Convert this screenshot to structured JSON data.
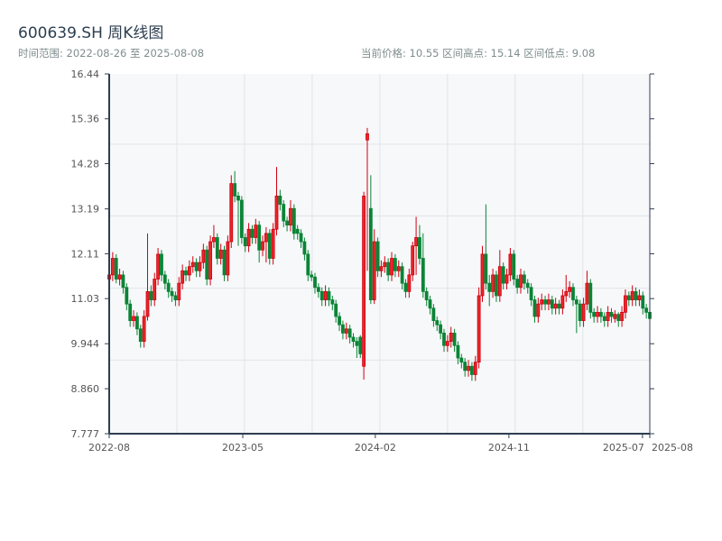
{
  "header": {
    "title": "600639.SH 周K线图",
    "range_label": "时间范围: 2022-08-26 至 2025-08-08",
    "stats_label": "当前价格: 10.55  区间高点: 15.14  区间低点: 9.08"
  },
  "colors": {
    "up": "#d0000f",
    "up_fill": "#e8262a",
    "down": "#0a8436",
    "axis": "#2c3e50",
    "grid": "#e1e4e8",
    "plot_bg": "#f7f8fa"
  },
  "chart_data": {
    "type": "candlestick",
    "title": "600639.SH 周K线图",
    "ylim": [
      7.777,
      16.44
    ],
    "y_ticks": [
      "16.44",
      "15.36",
      "14.28",
      "13.19",
      "12.11",
      "11.03",
      "9.944",
      "8.860",
      "7.777"
    ],
    "y_grid_values": [
      14.75,
      13.02,
      11.28,
      9.55
    ],
    "x_grid_indices": [
      19.4,
      38.8,
      58.2,
      77.6,
      97.0,
      116.4,
      135.8
    ],
    "x_ticks": [
      {
        "index": 0,
        "label": "2022-08"
      },
      {
        "index": 38.3,
        "label": "2023-05"
      },
      {
        "index": 76.3,
        "label": "2024-02"
      },
      {
        "index": 114.6,
        "label": "2024-11"
      },
      {
        "index": 152.9,
        "label": "2025-07"
      },
      {
        "index": 155,
        "label": "2025-08"
      }
    ],
    "candle_format": [
      "open",
      "high",
      "low",
      "close"
    ],
    "candles": [
      [
        11.5,
        11.75,
        11.35,
        11.6
      ],
      [
        11.6,
        12.15,
        11.45,
        12.0
      ],
      [
        12.0,
        12.1,
        11.4,
        11.5
      ],
      [
        11.5,
        11.75,
        11.35,
        11.6
      ],
      [
        11.6,
        11.7,
        11.15,
        11.3
      ],
      [
        11.3,
        11.4,
        10.75,
        10.9
      ],
      [
        10.9,
        11.0,
        10.35,
        10.5
      ],
      [
        10.5,
        10.75,
        10.35,
        10.6
      ],
      [
        10.6,
        10.7,
        10.15,
        10.3
      ],
      [
        10.3,
        10.4,
        9.85,
        10.0
      ],
      [
        10.0,
        10.75,
        9.85,
        10.6
      ],
      [
        10.6,
        12.6,
        10.5,
        11.2
      ],
      [
        11.2,
        11.35,
        10.85,
        11.0
      ],
      [
        11.0,
        11.65,
        10.85,
        11.5
      ],
      [
        11.5,
        12.25,
        11.35,
        12.1
      ],
      [
        12.1,
        12.2,
        11.45,
        11.6
      ],
      [
        11.6,
        11.7,
        11.25,
        11.4
      ],
      [
        11.4,
        11.5,
        11.05,
        11.2
      ],
      [
        11.2,
        11.3,
        10.95,
        11.1
      ],
      [
        11.1,
        11.2,
        10.85,
        11.0
      ],
      [
        11.0,
        11.55,
        10.85,
        11.4
      ],
      [
        11.4,
        11.85,
        11.25,
        11.7
      ],
      [
        11.7,
        11.8,
        11.45,
        11.6
      ],
      [
        11.6,
        11.95,
        11.45,
        11.8
      ],
      [
        11.8,
        12.05,
        11.65,
        11.9
      ],
      [
        11.9,
        12.0,
        11.55,
        11.7
      ],
      [
        11.7,
        12.05,
        11.55,
        11.9
      ],
      [
        11.9,
        12.35,
        11.75,
        12.2
      ],
      [
        12.2,
        12.3,
        11.35,
        11.5
      ],
      [
        11.5,
        12.55,
        11.35,
        12.4
      ],
      [
        12.4,
        12.8,
        12.25,
        12.5
      ],
      [
        12.5,
        12.6,
        11.85,
        12.0
      ],
      [
        12.0,
        12.35,
        11.85,
        12.2
      ],
      [
        12.2,
        12.3,
        11.45,
        11.6
      ],
      [
        11.6,
        12.55,
        11.45,
        12.4
      ],
      [
        12.4,
        14.0,
        12.25,
        13.8
      ],
      [
        13.8,
        14.1,
        13.35,
        13.5
      ],
      [
        13.5,
        13.6,
        12.3,
        13.4
      ],
      [
        13.4,
        13.5,
        12.35,
        12.5
      ],
      [
        12.5,
        12.6,
        12.15,
        12.3
      ],
      [
        12.3,
        12.85,
        12.15,
        12.7
      ],
      [
        12.7,
        12.8,
        12.35,
        12.5
      ],
      [
        12.5,
        12.95,
        12.35,
        12.8
      ],
      [
        12.8,
        12.9,
        11.9,
        12.2
      ],
      [
        12.2,
        12.55,
        12.05,
        12.4
      ],
      [
        12.4,
        12.75,
        11.9,
        12.6
      ],
      [
        12.6,
        12.7,
        11.85,
        12.0
      ],
      [
        12.0,
        12.85,
        11.85,
        12.7
      ],
      [
        12.7,
        14.2,
        12.55,
        13.5
      ],
      [
        13.5,
        13.65,
        13.15,
        13.3
      ],
      [
        13.3,
        13.4,
        12.75,
        12.9
      ],
      [
        12.9,
        13.0,
        12.65,
        12.8
      ],
      [
        12.8,
        13.4,
        12.65,
        13.2
      ],
      [
        13.2,
        13.3,
        12.45,
        12.6
      ],
      [
        12.7,
        12.8,
        12.45,
        12.6
      ],
      [
        12.6,
        12.7,
        12.25,
        12.4
      ],
      [
        12.4,
        12.5,
        11.95,
        12.1
      ],
      [
        12.1,
        12.2,
        11.45,
        11.6
      ],
      [
        11.6,
        11.7,
        11.45,
        11.55
      ],
      [
        11.55,
        11.65,
        11.15,
        11.3
      ],
      [
        11.3,
        11.4,
        11.05,
        11.2
      ],
      [
        11.2,
        11.3,
        10.85,
        11.0
      ],
      [
        11.0,
        11.35,
        10.85,
        11.2
      ],
      [
        11.2,
        11.3,
        10.85,
        11.0
      ],
      [
        11.0,
        11.1,
        10.75,
        10.9
      ],
      [
        10.9,
        11.0,
        10.45,
        10.6
      ],
      [
        10.6,
        10.7,
        10.25,
        10.4
      ],
      [
        10.4,
        10.5,
        10.05,
        10.2
      ],
      [
        10.2,
        10.45,
        10.05,
        10.3
      ],
      [
        10.3,
        10.4,
        9.95,
        10.1
      ],
      [
        10.1,
        10.2,
        9.85,
        10.0
      ],
      [
        10.0,
        10.1,
        9.6,
        9.9
      ],
      [
        10.1,
        10.15,
        9.6,
        9.7
      ],
      [
        9.4,
        13.6,
        9.08,
        13.5
      ],
      [
        14.85,
        15.14,
        11.7,
        15.0
      ],
      [
        13.2,
        14.0,
        10.9,
        11.0
      ],
      [
        11.0,
        12.7,
        10.9,
        12.4
      ],
      [
        12.4,
        12.5,
        11.55,
        11.7
      ],
      [
        11.7,
        11.95,
        11.55,
        11.8
      ],
      [
        11.8,
        12.05,
        11.65,
        11.9
      ],
      [
        11.9,
        12.0,
        11.45,
        11.6
      ],
      [
        11.6,
        12.15,
        11.45,
        12.0
      ],
      [
        12.0,
        12.1,
        11.55,
        11.7
      ],
      [
        11.7,
        11.95,
        11.55,
        11.8
      ],
      [
        11.8,
        11.9,
        11.25,
        11.4
      ],
      [
        11.4,
        11.5,
        11.05,
        11.2
      ],
      [
        11.2,
        11.75,
        11.05,
        11.6
      ],
      [
        11.6,
        12.4,
        11.45,
        12.3
      ],
      [
        12.3,
        13.0,
        11.6,
        12.5
      ],
      [
        12.5,
        12.8,
        11.85,
        12.0
      ],
      [
        12.0,
        12.6,
        11.05,
        11.2
      ],
      [
        11.2,
        11.3,
        10.85,
        11.0
      ],
      [
        11.0,
        11.1,
        10.65,
        10.8
      ],
      [
        10.8,
        10.9,
        10.35,
        10.5
      ],
      [
        10.5,
        10.6,
        10.25,
        10.4
      ],
      [
        10.4,
        10.5,
        10.05,
        10.2
      ],
      [
        10.2,
        10.3,
        9.75,
        9.9
      ],
      [
        9.9,
        10.15,
        9.75,
        10.0
      ],
      [
        10.0,
        10.35,
        9.85,
        10.2
      ],
      [
        10.2,
        10.3,
        9.75,
        9.9
      ],
      [
        9.9,
        10.0,
        9.45,
        9.6
      ],
      [
        9.6,
        9.7,
        9.35,
        9.5
      ],
      [
        9.5,
        9.6,
        9.15,
        9.3
      ],
      [
        9.3,
        9.55,
        9.15,
        9.4
      ],
      [
        9.4,
        9.5,
        9.05,
        9.2
      ],
      [
        9.2,
        9.65,
        9.05,
        9.5
      ],
      [
        9.5,
        11.3,
        9.35,
        11.1
      ],
      [
        11.1,
        12.3,
        10.95,
        12.1
      ],
      [
        12.1,
        13.3,
        11.25,
        11.4
      ],
      [
        11.4,
        11.6,
        10.85,
        11.2
      ],
      [
        11.2,
        11.75,
        11.05,
        11.6
      ],
      [
        11.6,
        11.7,
        10.95,
        11.1
      ],
      [
        11.1,
        12.2,
        10.95,
        11.8
      ],
      [
        11.8,
        11.9,
        11.25,
        11.4
      ],
      [
        11.4,
        11.75,
        11.25,
        11.6
      ],
      [
        11.6,
        12.25,
        11.45,
        12.1
      ],
      [
        12.1,
        12.2,
        11.35,
        11.5
      ],
      [
        11.5,
        11.6,
        11.15,
        11.3
      ],
      [
        11.3,
        11.75,
        11.15,
        11.6
      ],
      [
        11.6,
        11.7,
        11.25,
        11.4
      ],
      [
        11.4,
        11.5,
        11.15,
        11.3
      ],
      [
        11.3,
        11.4,
        10.85,
        11.0
      ],
      [
        11.0,
        11.1,
        10.45,
        10.6
      ],
      [
        10.6,
        11.05,
        10.45,
        10.9
      ],
      [
        10.9,
        11.15,
        10.75,
        11.0
      ],
      [
        11.0,
        11.1,
        10.75,
        10.9
      ],
      [
        10.9,
        11.15,
        10.75,
        11.0
      ],
      [
        11.0,
        11.1,
        10.65,
        10.8
      ],
      [
        10.8,
        11.05,
        10.65,
        10.9
      ],
      [
        10.9,
        11.0,
        10.65,
        10.8
      ],
      [
        10.8,
        11.25,
        10.65,
        11.1
      ],
      [
        11.1,
        11.6,
        10.95,
        11.2
      ],
      [
        11.2,
        11.45,
        11.05,
        11.3
      ],
      [
        11.3,
        11.4,
        10.85,
        11.0
      ],
      [
        11.0,
        11.1,
        10.2,
        10.9
      ],
      [
        10.9,
        11.0,
        10.35,
        10.5
      ],
      [
        10.5,
        11.05,
        10.35,
        10.9
      ],
      [
        10.9,
        11.7,
        10.75,
        11.4
      ],
      [
        11.4,
        11.5,
        10.55,
        10.7
      ],
      [
        10.7,
        10.8,
        10.45,
        10.6
      ],
      [
        10.6,
        10.85,
        10.45,
        10.7
      ],
      [
        10.7,
        10.8,
        10.45,
        10.6
      ],
      [
        10.6,
        10.7,
        10.35,
        10.5
      ],
      [
        10.5,
        10.85,
        10.35,
        10.7
      ],
      [
        10.7,
        10.8,
        10.45,
        10.6
      ],
      [
        10.55,
        10.75,
        10.45,
        10.65
      ],
      [
        10.65,
        10.7,
        10.35,
        10.5
      ],
      [
        10.5,
        10.85,
        10.35,
        10.7
      ],
      [
        10.7,
        11.25,
        10.55,
        11.1
      ],
      [
        11.1,
        11.2,
        10.85,
        11.0
      ],
      [
        11.0,
        11.35,
        10.85,
        11.2
      ],
      [
        11.2,
        11.3,
        10.85,
        11.0
      ],
      [
        11.0,
        11.25,
        10.85,
        11.1
      ],
      [
        11.1,
        11.2,
        10.65,
        10.8
      ],
      [
        10.8,
        10.9,
        10.55,
        10.7
      ],
      [
        10.7,
        10.8,
        10.2,
        10.55
      ]
    ]
  }
}
